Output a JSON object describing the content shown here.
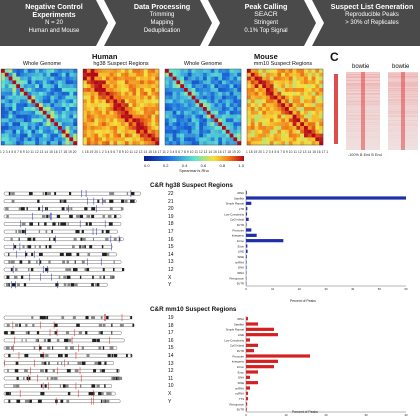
{
  "workflow": [
    {
      "head": "Negative Control",
      "head2": "Experiments",
      "lines": [
        "N = 20",
        "Human and Mouse"
      ]
    },
    {
      "head": "Data Processing",
      "head2": "",
      "lines": [
        "Trimming",
        "Mapping",
        "Deduplication"
      ]
    },
    {
      "head": "Peak Calling",
      "head2": "SEACR",
      "lines": [
        "Stringent",
        "0.1% Top Signal"
      ]
    },
    {
      "head": "Suspect List Generation",
      "head2": "",
      "lines": [
        "Reproducible Peaks",
        "> 30% of Replicates"
      ]
    }
  ],
  "colors": {
    "arrow": "#4a4a4a",
    "bar_human": "#1f2fa8",
    "bar_mouse": "#d42020"
  },
  "heatmaps": {
    "human_label": "Human",
    "mouse_label": "Mouse",
    "titles": [
      "Whole Genome",
      "hg38 Suspect Regions",
      "Whole Genome",
      "mm10 Suspect Regions"
    ],
    "tick_x": "1 2 3 4 5 6 7 8 9 10 11 12 13 14 15 16 17 18 19 20",
    "tick_x_hm": "1 18 19 20 1 2 3 4 5 6 7 8 9 10 11 12 13 14 15 16 17 18 19 20",
    "colorbar_ticks": [
      "0.6",
      "0.8",
      "1.0"
    ],
    "colorbar_ticks_full": [
      "0.0",
      "0.2",
      "0.4",
      "0.6",
      "0.8",
      "1.0"
    ],
    "colorbar_label": "Spearman's Rho"
  },
  "panel_c": {
    "letter": "C",
    "left_label": "bowtie",
    "right_label": "bowtie",
    "axis": "-100% B End B End"
  },
  "hg38_section": {
    "title": "C&R hg38 Suspect Regions",
    "chromosomes": [
      "22",
      "21",
      "20",
      "19",
      "18",
      "17",
      "16",
      "15",
      "14",
      "13",
      "12",
      "X",
      "Y"
    ],
    "x_axis_label": "Percent of Peaks"
  },
  "mm10_section": {
    "title": "C&R mm10 Suspect Regions",
    "chromosomes": [
      "19",
      "18",
      "17",
      "16",
      "15",
      "14",
      "13",
      "12",
      "11",
      "10",
      "X",
      "Y"
    ],
    "x_axis_label": "Percent of Peaks"
  },
  "chart_data": [
    {
      "type": "bar",
      "title": "C&R hg38 Suspect Regions",
      "xlabel": "Percent of Peaks",
      "orientation": "horizontal",
      "categories": [
        "rRNA",
        "Satellite",
        "Simple Repeat",
        "LTR",
        "Low Complexity",
        "CpG Island",
        "3UTR",
        "Promoter",
        "Intergenic",
        "Intron",
        "Exon",
        "LINE",
        "SINE",
        "snRNA",
        "DNA",
        "tRNA",
        "Retroposon",
        "5UTR"
      ],
      "values": [
        0.3,
        60,
        2,
        0.5,
        0.4,
        1,
        0.2,
        2,
        4,
        14,
        0.5,
        0.6,
        0.3,
        0.2,
        0.2,
        0.1,
        0.1,
        0.1
      ],
      "xticks": [
        "0",
        "10",
        "20",
        "30",
        "40",
        "50",
        "60"
      ],
      "xlim": [
        0,
        60
      ]
    },
    {
      "type": "bar",
      "title": "C&R mm10 Suspect Regions",
      "xlabel": "Percent of Peaks",
      "orientation": "horizontal",
      "categories": [
        "rRNA",
        "Satellite",
        "Simple Repeat",
        "LINE",
        "Low Complexity",
        "CpG Island",
        "3UTR",
        "Promoter",
        "Intergenic",
        "Intron",
        "Exon",
        "DNA",
        "SINE",
        "snRNA",
        "scRNA",
        "TTS",
        "Retroposon",
        "5UTR"
      ],
      "values": [
        0.5,
        3,
        7,
        8,
        1,
        3,
        2,
        16,
        8,
        7,
        3,
        1,
        3,
        1,
        0.5,
        0.5,
        0.3,
        0.2
      ],
      "xticks": [
        "0",
        "10",
        "20",
        "30",
        "40"
      ],
      "xlim": [
        0,
        40
      ]
    }
  ]
}
